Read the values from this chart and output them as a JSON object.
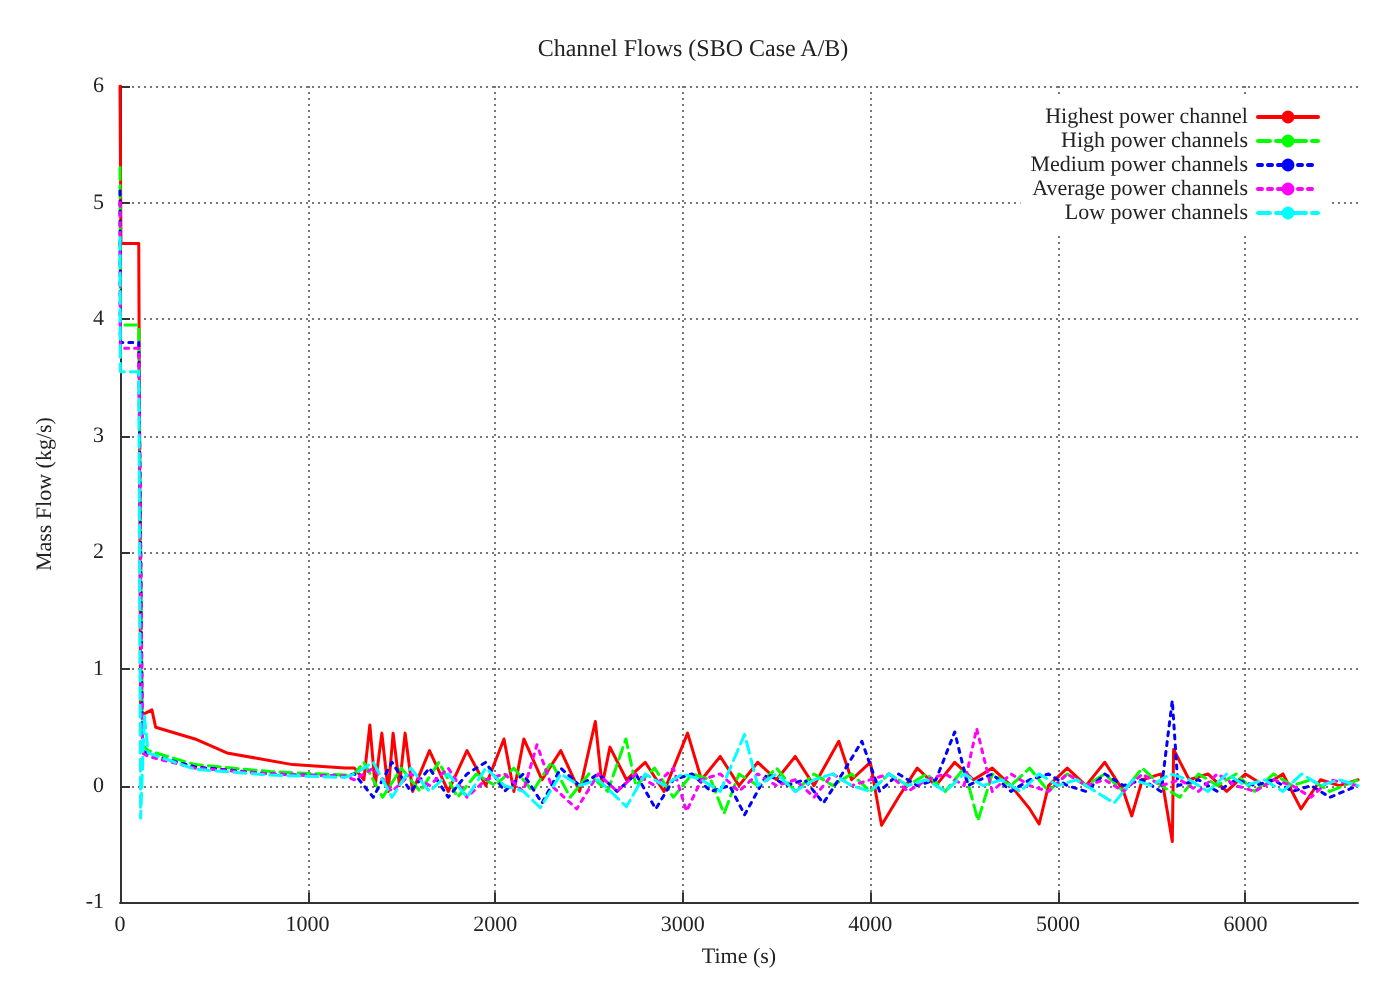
{
  "chart_data": {
    "type": "line",
    "title": "Channel Flows (SBO Case A/B)",
    "xlabel": "Time (s)",
    "ylabel": "Mass Flow (kg/s)",
    "xlim": [
      0,
      6600
    ],
    "xticks": [
      0,
      1000,
      2000,
      3000,
      4000,
      5000,
      6000
    ],
    "ylim": [
      -1,
      6
    ],
    "yticks": [
      -1,
      0,
      1,
      2,
      3,
      4,
      5,
      6
    ],
    "grid": true,
    "legend": "top right",
    "marker": "none",
    "series": [
      {
        "name": "Highest power channel",
        "color": "#ff0000",
        "line_style": "solid",
        "x": [
          0,
          2,
          5,
          8,
          100,
          110,
          170,
          190,
          400,
          570,
          920,
          1200,
          1250,
          1300,
          1332,
          1360,
          1396,
          1430,
          1456,
          1490,
          1520,
          1560,
          1650,
          1750,
          1850,
          1950,
          2047,
          2100,
          2153,
          2250,
          2350,
          2450,
          2534,
          2570,
          2612,
          2700,
          2800,
          2900,
          3026,
          3100,
          3200,
          3300,
          3400,
          3500,
          3600,
          3700,
          3832,
          3900,
          4000,
          4060,
          4150,
          4250,
          4350,
          4450,
          4550,
          4650,
          4750,
          4850,
          4900,
          4950,
          5050,
          5150,
          5250,
          5350,
          5394,
          5450,
          5550,
          5610,
          5617,
          5700,
          5800,
          5900,
          6000,
          6100,
          6200,
          6296,
          6400,
          6500,
          6600
        ],
        "values": [
          6,
          6,
          4.65,
          4.65,
          4.65,
          0.6,
          0.65,
          0.5,
          0.4,
          0.28,
          0.18,
          0.15,
          0.15,
          0.05,
          0.52,
          0.0,
          0.45,
          -0.05,
          0.45,
          0.0,
          0.45,
          -0.05,
          0.3,
          -0.05,
          0.3,
          0.0,
          0.4,
          -0.05,
          0.4,
          0.05,
          0.3,
          -0.05,
          0.55,
          0.0,
          0.33,
          0.05,
          0.2,
          -0.05,
          0.45,
          0.05,
          0.25,
          0.0,
          0.2,
          0.05,
          0.25,
          0.0,
          0.38,
          0.05,
          0.2,
          -0.34,
          -0.1,
          0.15,
          0.0,
          0.2,
          0.05,
          0.15,
          0.0,
          -0.2,
          -0.33,
          0.0,
          0.15,
          0.0,
          0.2,
          -0.05,
          -0.26,
          0.05,
          0.1,
          -0.48,
          0.31,
          0.05,
          0.1,
          -0.05,
          0.1,
          0.0,
          0.1,
          -0.2,
          0.05,
          0.0,
          0.05
        ]
      },
      {
        "name": "High power channels",
        "color": "#00ff00",
        "line_style": "dashed",
        "x": [
          0,
          2,
          8,
          100,
          120,
          150,
          400,
          800,
          1200,
          1250,
          1300,
          1400,
          1500,
          1600,
          1700,
          1800,
          1900,
          2000,
          2100,
          2200,
          2300,
          2400,
          2500,
          2600,
          2697,
          2750,
          2850,
          2950,
          3050,
          3150,
          3220,
          3300,
          3400,
          3500,
          3600,
          3700,
          3800,
          3900,
          4000,
          4100,
          4200,
          4300,
          4400,
          4500,
          4574,
          4650,
          4750,
          4850,
          4950,
          5050,
          5150,
          5250,
          5350,
          5450,
          5550,
          5650,
          5750,
          5850,
          5950,
          6050,
          6150,
          6250,
          6350,
          6450,
          6600
        ],
        "values": [
          5.3,
          3.95,
          3.95,
          3.95,
          0.35,
          0.3,
          0.18,
          0.12,
          0.09,
          0.1,
          0.2,
          -0.1,
          0.15,
          -0.05,
          0.2,
          -0.1,
          0.1,
          0.0,
          0.15,
          -0.05,
          0.2,
          -0.1,
          0.1,
          -0.05,
          0.4,
          0.0,
          0.15,
          -0.1,
          0.1,
          0.05,
          -0.24,
          0.1,
          0.0,
          0.15,
          -0.05,
          0.1,
          0.0,
          0.1,
          -0.05,
          0.1,
          0.0,
          0.1,
          -0.05,
          0.15,
          -0.3,
          0.1,
          0.0,
          0.15,
          -0.05,
          0.1,
          0.0,
          0.1,
          -0.05,
          0.15,
          0.0,
          -0.1,
          0.1,
          0.0,
          0.1,
          -0.05,
          0.1,
          0.0,
          0.05,
          -0.05,
          0.05
        ]
      },
      {
        "name": "Medium power channels",
        "color": "#0000ff",
        "line_style": "dotted",
        "x": [
          0,
          2,
          8,
          100,
          120,
          150,
          400,
          800,
          1200,
          1250,
          1350,
          1450,
          1550,
          1650,
          1750,
          1850,
          1950,
          2050,
          2150,
          2250,
          2350,
          2450,
          2550,
          2650,
          2750,
          2856,
          2950,
          3050,
          3150,
          3250,
          3330,
          3450,
          3550,
          3650,
          3750,
          3850,
          3955,
          4050,
          4150,
          4250,
          4350,
          4450,
          4520,
          4650,
          4750,
          4850,
          4950,
          5050,
          5150,
          5250,
          5350,
          5450,
          5550,
          5610,
          5640,
          5750,
          5850,
          5950,
          6050,
          6150,
          6250,
          6350,
          6450,
          6600
        ],
        "values": [
          5.1,
          3.8,
          3.8,
          3.8,
          0.3,
          0.27,
          0.16,
          0.1,
          0.08,
          0.1,
          -0.1,
          0.2,
          -0.05,
          0.15,
          -0.1,
          0.1,
          0.2,
          -0.05,
          0.1,
          -0.15,
          0.15,
          0.0,
          0.1,
          -0.05,
          0.1,
          -0.2,
          0.05,
          0.1,
          -0.05,
          0.0,
          -0.25,
          0.1,
          0.0,
          0.05,
          -0.15,
          0.1,
          0.38,
          -0.05,
          0.1,
          0.0,
          0.05,
          0.46,
          0.0,
          0.1,
          -0.05,
          0.05,
          0.1,
          0.0,
          -0.05,
          0.1,
          0.0,
          0.05,
          -0.05,
          0.73,
          0.0,
          0.05,
          -0.05,
          0.05,
          0.0,
          0.05,
          -0.05,
          0.0,
          -0.1,
          0.0
        ]
      },
      {
        "name": "Average power channels",
        "color": "#ff00ff",
        "line_style": "dotted",
        "x": [
          0,
          2,
          8,
          100,
          120,
          150,
          400,
          800,
          1200,
          1250,
          1350,
          1450,
          1550,
          1650,
          1750,
          1850,
          1950,
          2050,
          2150,
          2223,
          2300,
          2435,
          2550,
          2650,
          2750,
          2850,
          2950,
          3020,
          3100,
          3200,
          3300,
          3400,
          3500,
          3600,
          3700,
          3800,
          3900,
          4000,
          4100,
          4200,
          4300,
          4400,
          4500,
          4567,
          4650,
          4750,
          4850,
          4950,
          5050,
          5150,
          5250,
          5350,
          5450,
          5550,
          5650,
          5750,
          5850,
          5950,
          6050,
          6150,
          6250,
          6350,
          6450,
          6600
        ],
        "values": [
          5.0,
          3.75,
          3.75,
          3.75,
          0.28,
          0.25,
          0.15,
          0.1,
          0.08,
          0.05,
          0.15,
          -0.05,
          0.1,
          0.0,
          0.15,
          -0.1,
          0.05,
          0.1,
          -0.05,
          0.35,
          0.0,
          -0.2,
          0.1,
          -0.05,
          0.1,
          0.0,
          0.15,
          -0.22,
          0.05,
          0.1,
          -0.05,
          0.1,
          0.0,
          0.05,
          -0.1,
          0.1,
          0.0,
          0.05,
          0.1,
          -0.05,
          0.05,
          0.1,
          0.0,
          0.49,
          -0.05,
          0.1,
          0.0,
          -0.05,
          0.1,
          0.0,
          0.05,
          -0.05,
          0.1,
          0.0,
          0.05,
          -0.05,
          0.1,
          0.0,
          -0.05,
          0.05,
          0.0,
          -0.1,
          0.05,
          0.0
        ]
      },
      {
        "name": "Low power channels",
        "color": "#00ffff",
        "line_style": "dashed",
        "x": [
          0,
          2,
          8,
          100,
          110,
          130,
          150,
          400,
          800,
          1200,
          1250,
          1350,
          1450,
          1550,
          1650,
          1750,
          1850,
          1950,
          2050,
          2150,
          2241,
          2350,
          2450,
          2550,
          2700,
          2800,
          2900,
          3000,
          3100,
          3200,
          3330,
          3400,
          3500,
          3600,
          3700,
          3800,
          3900,
          4000,
          4100,
          4200,
          4300,
          4400,
          4500,
          4600,
          4700,
          4800,
          4900,
          5000,
          5100,
          5200,
          5300,
          5400,
          5500,
          5600,
          5700,
          5800,
          5900,
          6000,
          6100,
          6200,
          6300,
          6400,
          6500,
          6600
        ],
        "values": [
          4.7,
          3.55,
          3.55,
          3.55,
          -0.28,
          0.6,
          0.28,
          0.14,
          0.09,
          0.07,
          0.1,
          0.2,
          -0.1,
          0.15,
          -0.05,
          0.1,
          -0.1,
          0.15,
          0.0,
          -0.05,
          -0.19,
          0.1,
          0.0,
          0.05,
          -0.18,
          0.1,
          0.0,
          0.1,
          0.05,
          -0.05,
          0.44,
          0.0,
          0.1,
          -0.05,
          0.05,
          0.1,
          0.0,
          -0.05,
          0.1,
          0.0,
          0.05,
          -0.05,
          0.1,
          0.0,
          0.05,
          -0.05,
          0.1,
          0.0,
          0.05,
          -0.05,
          -0.15,
          0.05,
          0.0,
          0.1,
          0.05,
          -0.05,
          0.1,
          0.0,
          0.05,
          -0.05,
          0.1,
          0.0,
          0.05,
          0.0
        ]
      }
    ]
  }
}
